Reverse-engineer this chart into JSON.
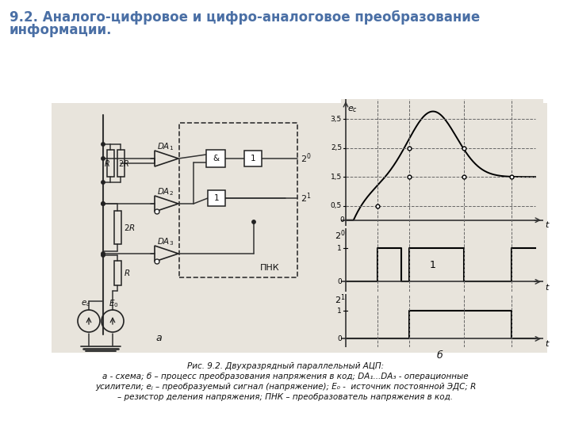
{
  "title_line1": "9.2. Аналого-цифровое и цифро-аналоговое преобразование",
  "title_line2": "информации.",
  "title_color": "#4a6fa5",
  "title_fontsize": 12,
  "caption_lines": [
    "Рис. 9.2. Двухразрядный параллельный АЦП:",
    "а - схема; б – процесс преобразования напряжения в код; DA₁...DA₃ - операционные",
    "усилители; eⱼ – преобразуемый сигнал (напряжение); E₀ -  источник постоянной ЭДС; R",
    "– резистор деления напряжения; ПНК – преобразователь напряжения в код."
  ],
  "bg_color": "#ffffff",
  "diagram_bg": "#e8e4dc"
}
